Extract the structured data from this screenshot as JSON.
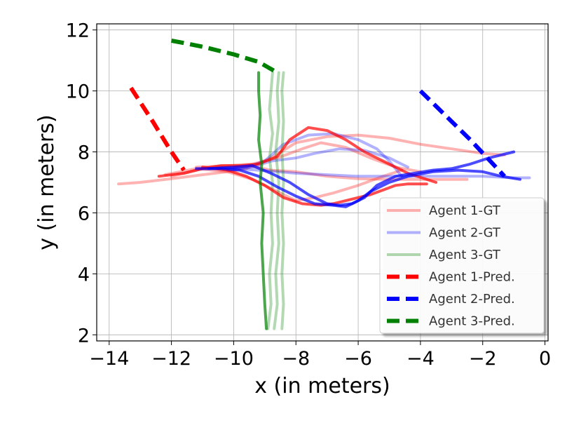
{
  "chart_data": {
    "type": "line",
    "xlabel": "x (in meters)",
    "ylabel": "y (in meters)",
    "xlim": [
      -14.4,
      0.1
    ],
    "ylim": [
      1.8,
      12.2
    ],
    "xticks": [
      -14,
      -12,
      -10,
      -8,
      -6,
      -4,
      -2,
      0
    ],
    "yticks": [
      2,
      4,
      6,
      8,
      10,
      12
    ],
    "x_tick_labels": [
      "−14",
      "−12",
      "−10",
      "−8",
      "−6",
      "−4",
      "−2",
      "0"
    ],
    "y_tick_labels": [
      "2",
      "4",
      "6",
      "8",
      "10",
      "12"
    ],
    "grid": true,
    "legend_position": "lower-right",
    "series": [
      {
        "name": "Agent 1-GT",
        "color": "#ff0000",
        "style": "solid",
        "alpha": 0.3,
        "tracks": [
          {
            "x": [
              -13.7,
              -13.0,
              -12.0,
              -11.0,
              -10.2,
              -9.6,
              -8.8,
              -8.0,
              -7.0,
              -6.0,
              -5.0,
              -4.0,
              -3.0,
              -2.0,
              -1.3
            ],
            "y": [
              6.95,
              7.0,
              7.12,
              7.25,
              7.35,
              7.45,
              7.8,
              8.3,
              8.5,
              8.55,
              8.45,
              8.25,
              8.1,
              7.95,
              7.9
            ]
          },
          {
            "x": [
              -12.0,
              -11.0,
              -10.0,
              -9.5,
              -8.8,
              -8.0,
              -7.0,
              -6.0,
              -5.0,
              -4.0,
              -3.0,
              -2.5
            ],
            "y": [
              7.2,
              7.45,
              7.5,
              7.55,
              7.4,
              7.35,
              7.2,
              7.12,
              7.1,
              7.1,
              7.1,
              7.1
            ]
          },
          {
            "x": [
              -12.2,
              -11.2,
              -10.2,
              -9.4,
              -8.6,
              -8.0,
              -7.4,
              -6.8,
              -6.0,
              -5.2,
              -4.6
            ],
            "y": [
              7.25,
              7.45,
              7.35,
              7.1,
              6.7,
              6.4,
              6.5,
              6.65,
              6.9,
              7.2,
              7.4
            ]
          },
          {
            "x": [
              -11.2,
              -10.2,
              -9.4,
              -8.6,
              -7.8,
              -7.2,
              -6.4,
              -5.6,
              -4.8,
              -4.0
            ],
            "y": [
              7.5,
              7.55,
              7.6,
              7.8,
              8.1,
              8.3,
              8.15,
              7.8,
              7.5,
              7.35
            ]
          }
        ]
      },
      {
        "name": "Agent 2-GT",
        "color": "#0000ff",
        "style": "solid",
        "alpha": 0.3,
        "tracks": [
          {
            "x": [
              -11.0,
              -10.0,
              -9.2,
              -8.6,
              -8.0,
              -7.0,
              -6.0,
              -5.0,
              -4.0,
              -3.0,
              -2.0,
              -1.0,
              -0.5
            ],
            "y": [
              7.45,
              7.45,
              7.4,
              7.35,
              7.3,
              7.25,
              7.2,
              7.2,
              7.2,
              7.2,
              7.2,
              7.15,
              7.15
            ]
          },
          {
            "x": [
              -10.5,
              -9.6,
              -9.0,
              -8.4,
              -7.6,
              -6.8,
              -6.0,
              -5.4,
              -5.0,
              -4.6
            ],
            "y": [
              7.45,
              7.5,
              7.7,
              8.25,
              8.55,
              8.6,
              8.4,
              8.1,
              7.7,
              7.2
            ]
          },
          {
            "x": [
              -10.2,
              -9.4,
              -8.8,
              -8.0,
              -7.4,
              -6.6,
              -5.8,
              -5.0,
              -4.4
            ],
            "y": [
              7.4,
              7.5,
              7.7,
              7.8,
              7.95,
              8.1,
              8.05,
              7.8,
              7.5
            ]
          }
        ]
      },
      {
        "name": "Agent 3-GT",
        "color": "#008000",
        "style": "solid",
        "alpha": 0.3,
        "tracks": [
          {
            "x": [
              -8.9,
              -8.8,
              -8.85,
              -8.75,
              -8.8,
              -8.75,
              -8.85,
              -8.75,
              -8.85,
              -8.8,
              -8.75
            ],
            "y": [
              2.2,
              3.0,
              4.0,
              5.0,
              6.0,
              7.0,
              7.8,
              8.6,
              9.4,
              10.0,
              10.6
            ]
          },
          {
            "x": [
              -8.7,
              -8.6,
              -8.65,
              -8.55,
              -8.6,
              -8.55,
              -8.65,
              -8.55,
              -8.6,
              -8.55
            ],
            "y": [
              2.2,
              3.0,
              4.0,
              5.0,
              6.0,
              7.0,
              8.0,
              9.0,
              10.0,
              10.6
            ]
          },
          {
            "x": [
              -8.45,
              -8.4,
              -8.45,
              -8.4,
              -8.45,
              -8.4,
              -8.45,
              -8.4,
              -8.45,
              -8.4
            ],
            "y": [
              2.2,
              3.0,
              4.0,
              5.0,
              6.0,
              7.0,
              8.0,
              9.0,
              10.0,
              10.6
            ]
          }
        ]
      },
      {
        "name": "Agent 1-Pred.",
        "color": "#ff0000",
        "style": "dashed",
        "alpha": 1.0,
        "tracks": [
          {
            "x": [
              -13.3,
              -12.6,
              -12.0,
              -11.6
            ],
            "y": [
              10.1,
              9.0,
              8.0,
              7.4
            ]
          }
        ]
      },
      {
        "name": "Agent 2-Pred.",
        "color": "#0000ff",
        "style": "dashed",
        "alpha": 1.0,
        "tracks": [
          {
            "x": [
              -4.0,
              -3.2,
              -2.4,
              -1.3
            ],
            "y": [
              10.0,
              9.2,
              8.4,
              7.2
            ]
          }
        ]
      },
      {
        "name": "Agent 3-Pred.",
        "color": "#008000",
        "style": "dashed",
        "alpha": 1.0,
        "tracks": [
          {
            "x": [
              -12.0,
              -11.0,
              -10.0,
              -9.2,
              -8.6
            ],
            "y": [
              11.65,
              11.45,
              11.2,
              10.95,
              10.6
            ]
          }
        ]
      },
      {
        "name": "",
        "color": "#ff0000",
        "style": "solid",
        "alpha": 0.7,
        "tracks": [
          {
            "x": [
              -12.4,
              -11.6,
              -11.0,
              -10.4,
              -9.8,
              -9.2,
              -8.6,
              -8.2,
              -7.6,
              -7.0,
              -6.4,
              -5.8,
              -5.2,
              -4.4,
              -3.5
            ],
            "y": [
              7.2,
              7.3,
              7.45,
              7.55,
              7.55,
              7.6,
              7.85,
              8.4,
              8.8,
              8.7,
              8.4,
              8.0,
              7.7,
              7.3,
              7.0
            ]
          },
          {
            "x": [
              -11.0,
              -10.2,
              -9.6,
              -9.0,
              -8.4,
              -7.8,
              -7.2,
              -6.8,
              -6.4,
              -6.0,
              -5.6,
              -5.2,
              -4.8,
              -4.4,
              -4.0,
              -3.8
            ],
            "y": [
              7.5,
              7.4,
              7.2,
              6.9,
              6.5,
              6.3,
              6.25,
              6.3,
              6.4,
              6.5,
              6.6,
              6.75,
              6.9,
              6.95,
              6.95,
              6.95
            ]
          }
        ]
      },
      {
        "name": "",
        "color": "#0000ff",
        "style": "solid",
        "alpha": 0.7,
        "tracks": [
          {
            "x": [
              -11.2,
              -10.4,
              -9.8,
              -9.2,
              -8.6,
              -8.0,
              -7.4,
              -6.8,
              -6.4,
              -6.0,
              -5.6,
              -5.0,
              -4.4,
              -3.6,
              -2.8,
              -2.0,
              -1.4,
              -0.8
            ],
            "y": [
              7.45,
              7.45,
              7.4,
              7.2,
              6.85,
              6.55,
              6.3,
              6.25,
              6.2,
              6.4,
              6.7,
              7.0,
              7.2,
              7.35,
              7.4,
              7.35,
              7.2,
              7.1
            ]
          },
          {
            "x": [
              -10.8,
              -10.0,
              -9.4,
              -8.8,
              -8.2,
              -7.6,
              -7.0,
              -6.6,
              -6.2,
              -5.8,
              -5.4,
              -4.8,
              -4.2,
              -3.6,
              -3.0,
              -2.4,
              -1.8,
              -1.0
            ],
            "y": [
              7.45,
              7.5,
              7.55,
              7.3,
              7.0,
              6.6,
              6.3,
              6.25,
              6.3,
              6.5,
              6.9,
              7.2,
              7.3,
              7.4,
              7.45,
              7.6,
              7.8,
              8.0
            ]
          }
        ]
      },
      {
        "name": "",
        "color": "#008000",
        "style": "solid",
        "alpha": 0.7,
        "tracks": [
          {
            "x": [
              -8.95,
              -9.0,
              -9.05,
              -9.1,
              -9.05,
              -9.15,
              -9.1,
              -9.2,
              -9.15,
              -9.2,
              -9.2
            ],
            "y": [
              2.2,
              3.0,
              4.0,
              5.0,
              6.0,
              7.0,
              7.6,
              8.4,
              9.2,
              10.0,
              10.6
            ]
          }
        ]
      }
    ]
  }
}
